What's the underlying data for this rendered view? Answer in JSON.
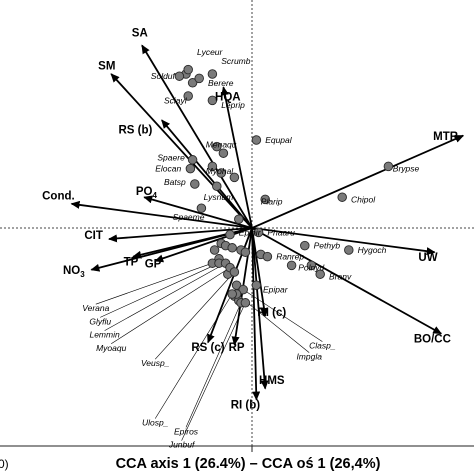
{
  "chart_data": {
    "type": "scatter",
    "subtype": "cca-biplot",
    "title": "",
    "xlabel": "CCA axis 1 (26.4%) – CCA oś 1 (26,4%)",
    "xlabel_prefix": "0)",
    "ylabel": "",
    "xlim": [
      -1.0,
      1.0
    ],
    "ylim": [
      -1.0,
      1.0
    ],
    "grid": false,
    "origin_lines": "dotted",
    "colors": {
      "point_fill": "#7a7a7a",
      "point_stroke": "#2a2a2a",
      "arrow": "#000000",
      "leader": "#000000",
      "axis_line": "#444444"
    },
    "species": [
      {
        "name": "Lyceur",
        "x": -0.29,
        "y": 0.72,
        "lx": -0.25,
        "ly": 0.8
      },
      {
        "name": "Scrumb",
        "x": -0.18,
        "y": 0.7,
        "lx": -0.14,
        "ly": 0.76
      },
      {
        "name": "Solduf",
        "x": -0.33,
        "y": 0.69,
        "lx": -0.46,
        "ly": 0.69
      },
      {
        "name": "Berere",
        "x": -0.24,
        "y": 0.68,
        "lx": -0.2,
        "ly": 0.66
      },
      {
        "name": "Sciayl",
        "x": -0.29,
        "y": 0.6,
        "lx": -0.4,
        "ly": 0.58
      },
      {
        "name": "Leprip",
        "x": -0.18,
        "y": 0.58,
        "lx": -0.14,
        "ly": 0.56
      },
      {
        "name": "Equpal",
        "x": 0.02,
        "y": 0.4,
        "lx": 0.06,
        "ly": 0.4
      },
      {
        "name": "Menaqu",
        "x": -0.16,
        "y": 0.37,
        "lx": -0.21,
        "ly": 0.38
      },
      {
        "name": "Spaere",
        "x": -0.27,
        "y": 0.31,
        "lx": -0.43,
        "ly": 0.32
      },
      {
        "name": "Elocan",
        "x": -0.28,
        "y": 0.27,
        "lx": -0.44,
        "ly": 0.27
      },
      {
        "name": "Myohal",
        "x": -0.18,
        "y": 0.28,
        "lx": -0.21,
        "ly": 0.26
      },
      {
        "name": "Batsp",
        "x": -0.26,
        "y": 0.2,
        "lx": -0.4,
        "ly": 0.21
      },
      {
        "name": "Lysnum",
        "x": -0.16,
        "y": 0.19,
        "lx": -0.22,
        "ly": 0.14
      },
      {
        "name": "Plarip",
        "x": 0.06,
        "y": 0.13,
        "lx": 0.04,
        "ly": 0.12
      },
      {
        "name": "Spaeme",
        "x": -0.23,
        "y": 0.09,
        "lx": -0.36,
        "ly": 0.05
      },
      {
        "name": "Brypse",
        "x": 0.62,
        "y": 0.28,
        "lx": 0.64,
        "ly": 0.27
      },
      {
        "name": "Chipol",
        "x": 0.41,
        "y": 0.14,
        "lx": 0.45,
        "ly": 0.13
      },
      {
        "name": "Epihir",
        "x": -0.1,
        "y": -0.03,
        "lx": -0.06,
        "ly": -0.02
      },
      {
        "name": "Phaaru",
        "x": 0.03,
        "y": -0.02,
        "lx": 0.07,
        "ly": -0.02
      },
      {
        "name": "Pethyb",
        "x": 0.24,
        "y": -0.08,
        "lx": 0.28,
        "ly": -0.08
      },
      {
        "name": "Hygoch",
        "x": 0.44,
        "y": -0.1,
        "lx": 0.48,
        "ly": -0.1
      },
      {
        "name": "Ranrep",
        "x": 0.07,
        "y": -0.13,
        "lx": 0.11,
        "ly": -0.13
      },
      {
        "name": "Polnyd",
        "x": 0.18,
        "y": -0.17,
        "lx": 0.21,
        "ly": -0.18
      },
      {
        "name": "Branv",
        "x": 0.31,
        "y": -0.21,
        "lx": 0.35,
        "ly": -0.22
      },
      {
        "name": "Epipar",
        "x": 0.02,
        "y": -0.26,
        "lx": 0.05,
        "ly": -0.28
      }
    ],
    "unlabeled_points": [
      {
        "x": -0.3,
        "y": 0.7
      },
      {
        "x": -0.27,
        "y": 0.66
      },
      {
        "x": -0.13,
        "y": 0.34
      },
      {
        "x": -0.08,
        "y": 0.23
      },
      {
        "x": -0.14,
        "y": 0.25
      },
      {
        "x": -0.06,
        "y": 0.04
      },
      {
        "x": -0.14,
        "y": -0.07
      },
      {
        "x": -0.12,
        "y": -0.08
      },
      {
        "x": -0.09,
        "y": -0.09
      },
      {
        "x": -0.05,
        "y": -0.1
      },
      {
        "x": -0.03,
        "y": -0.11
      },
      {
        "x": -0.17,
        "y": -0.1
      },
      {
        "x": -0.15,
        "y": -0.14
      },
      {
        "x": -0.11,
        "y": -0.21
      },
      {
        "x": -0.07,
        "y": -0.26
      },
      {
        "x": -0.08,
        "y": -0.31
      },
      {
        "x": -0.06,
        "y": -0.33
      },
      {
        "x": 0.04,
        "y": -0.12
      },
      {
        "x": 0.27,
        "y": -0.17
      }
    ],
    "leader_labels": [
      {
        "name": "Verana",
        "x": -0.18,
        "y": -0.16,
        "lx": -0.71,
        "ly": -0.36
      },
      {
        "name": "Glyflu",
        "x": -0.15,
        "y": -0.16,
        "lx": -0.69,
        "ly": -0.42
      },
      {
        "name": "Lemmin",
        "x": -0.12,
        "y": -0.16,
        "lx": -0.67,
        "ly": -0.48
      },
      {
        "name": "Myoaqu",
        "x": -0.1,
        "y": -0.18,
        "lx": -0.64,
        "ly": -0.54
      },
      {
        "name": "Veusp_",
        "x": -0.08,
        "y": -0.2,
        "lx": -0.44,
        "ly": -0.61
      },
      {
        "name": "Clasp_",
        "x": -0.04,
        "y": -0.28,
        "lx": 0.32,
        "ly": -0.53
      },
      {
        "name": "Impgla",
        "x": -0.07,
        "y": -0.3,
        "lx": 0.26,
        "ly": -0.58
      },
      {
        "name": "Ulosp_",
        "x": -0.09,
        "y": -0.3,
        "lx": -0.44,
        "ly": -0.88
      },
      {
        "name": "Epiros",
        "x": -0.05,
        "y": -0.34,
        "lx": -0.3,
        "ly": -0.92
      },
      {
        "name": "Junbuf",
        "x": -0.03,
        "y": -0.34,
        "lx": -0.32,
        "ly": -0.98
      }
    ],
    "environment_vectors": [
      {
        "name": "SA",
        "x": -0.5,
        "y": 0.83,
        "lx": -0.51,
        "ly": 0.87
      },
      {
        "name": "SM",
        "x": -0.64,
        "y": 0.7,
        "lx": -0.66,
        "ly": 0.72
      },
      {
        "name": "HQA",
        "x": -0.13,
        "y": 0.64,
        "lx": -0.11,
        "ly": 0.58
      },
      {
        "name": "RS (b)",
        "x": -0.41,
        "y": 0.49,
        "lx": -0.53,
        "ly": 0.43
      },
      {
        "name": "MTR",
        "x": 0.96,
        "y": 0.42,
        "lx": 0.88,
        "ly": 0.4
      },
      {
        "name": "PO4",
        "x": -0.49,
        "y": 0.14,
        "lx": -0.48,
        "ly": 0.15
      },
      {
        "name": "Cond.",
        "x": -0.82,
        "y": 0.11,
        "lx": -0.88,
        "ly": 0.13
      },
      {
        "name": "CIT",
        "x": -0.65,
        "y": -0.05,
        "lx": -0.72,
        "ly": -0.05
      },
      {
        "name": "NO3",
        "x": -0.73,
        "y": -0.19,
        "lx": -0.81,
        "ly": -0.21
      },
      {
        "name": "TP",
        "x": -0.54,
        "y": -0.13,
        "lx": -0.55,
        "ly": -0.17
      },
      {
        "name": "GP",
        "x": -0.44,
        "y": -0.15,
        "lx": -0.45,
        "ly": -0.18
      },
      {
        "name": "UW",
        "x": 0.83,
        "y": -0.11,
        "lx": 0.8,
        "ly": -0.15
      },
      {
        "name": "BO/CC",
        "x": 0.86,
        "y": -0.48,
        "lx": 0.82,
        "ly": -0.52
      },
      {
        "name": "RI (c)",
        "x": 0.06,
        "y": -0.4,
        "lx": 0.09,
        "ly": -0.4
      },
      {
        "name": "RS (c)",
        "x": -0.2,
        "y": -0.52,
        "lx": -0.2,
        "ly": -0.56
      },
      {
        "name": "RP",
        "x": -0.08,
        "y": -0.53,
        "lx": -0.07,
        "ly": -0.56
      },
      {
        "name": "HMS",
        "x": 0.06,
        "y": -0.73,
        "lx": 0.09,
        "ly": -0.71
      },
      {
        "name": "RI (b)",
        "x": 0.02,
        "y": -0.78,
        "lx": -0.03,
        "ly": -0.82
      }
    ]
  }
}
